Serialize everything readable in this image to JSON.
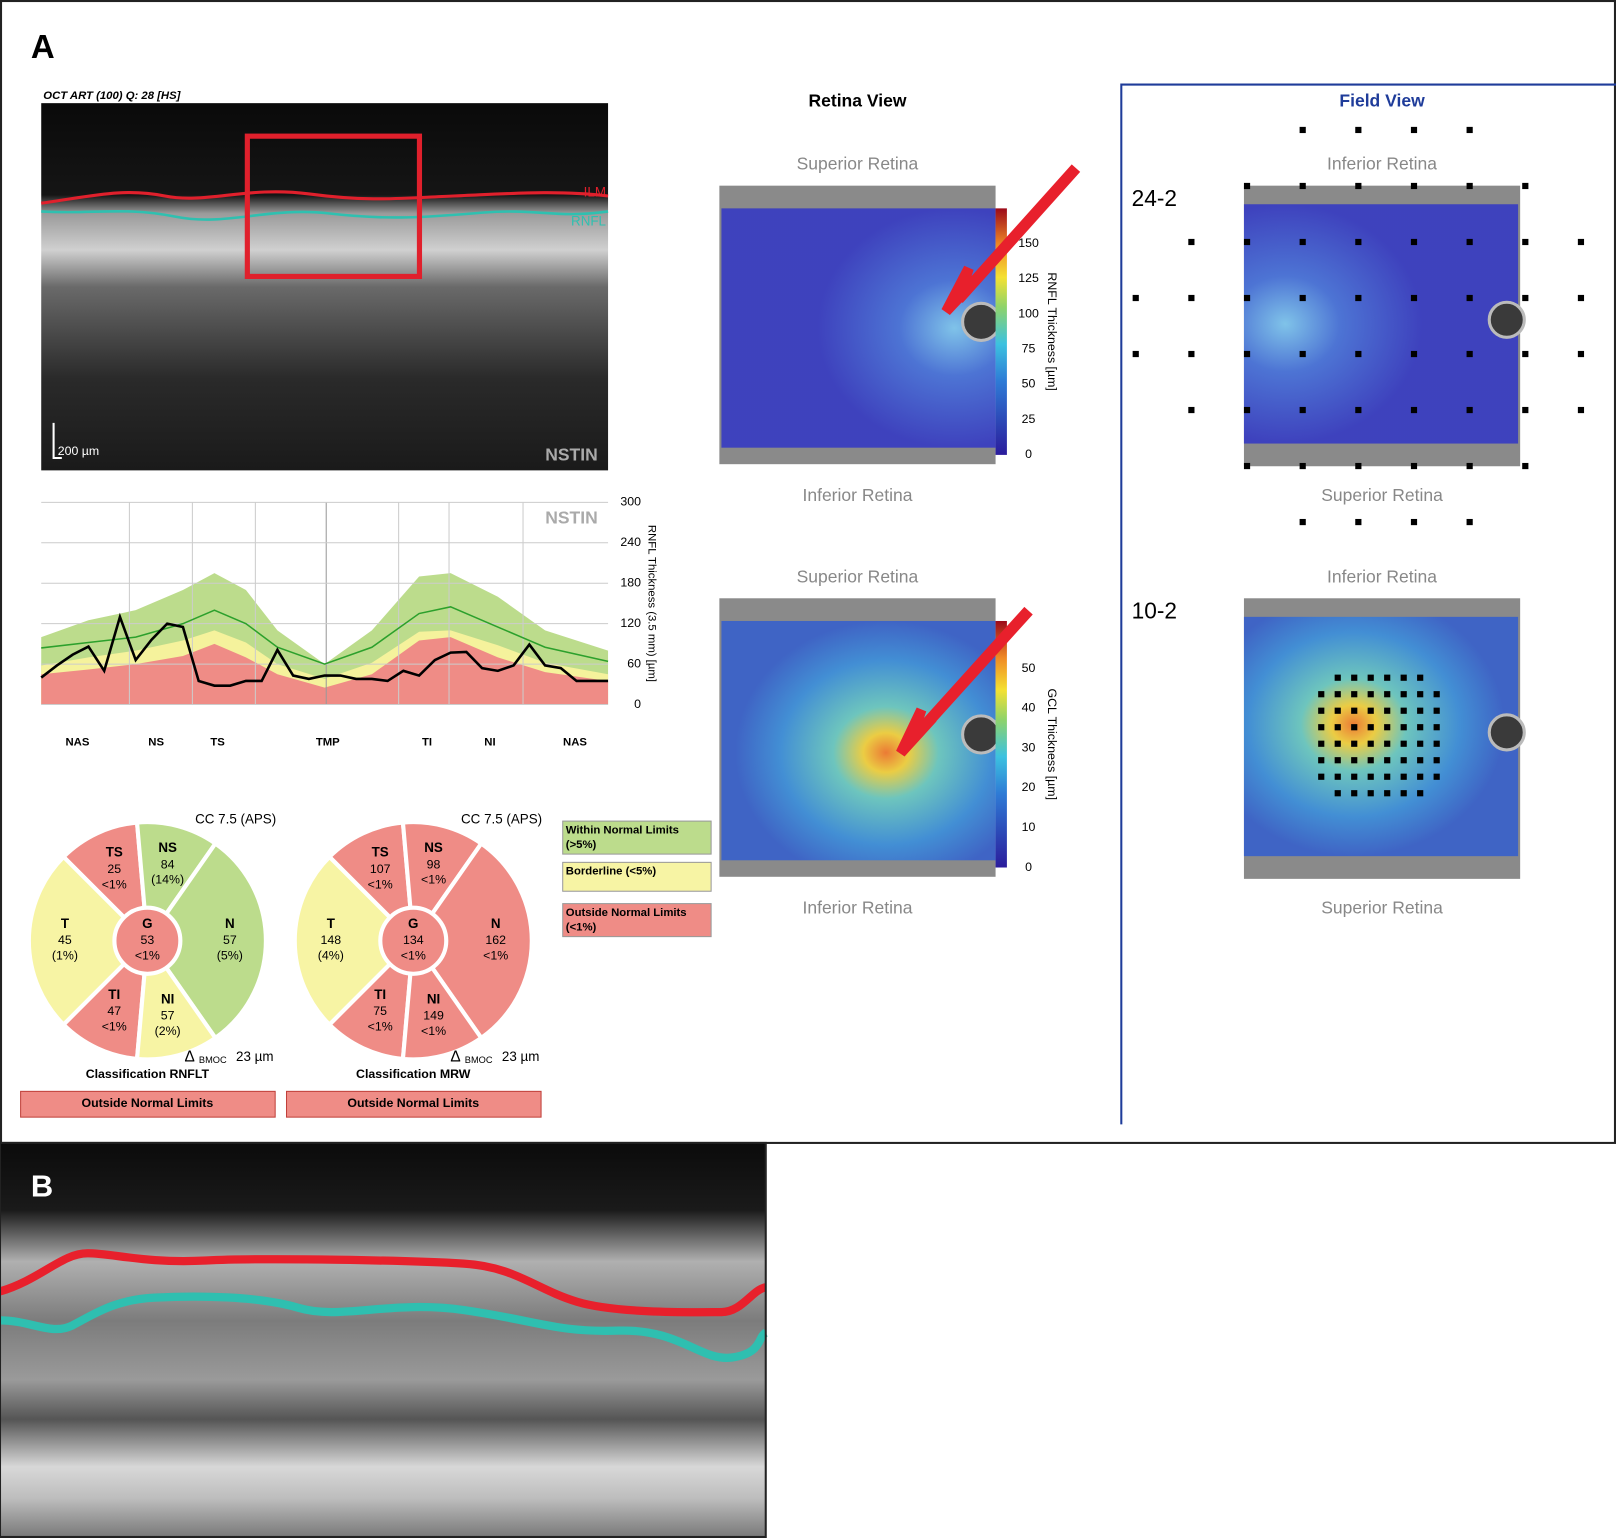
{
  "panel_a": {
    "label": "A"
  },
  "panel_b": {
    "label": "B"
  },
  "oct_scan": {
    "header": "OCT ART (100) Q: 28 [HS]",
    "ilm": "ILM",
    "rnfl": "RNFL",
    "scale": "200 µm",
    "sector": "NSTIN"
  },
  "chart_data": {
    "type": "line",
    "title": "NSTIN",
    "ylabel": "RNFL Thickness (3.5 mm) [µm]",
    "xlim": [
      0,
      360
    ],
    "ylim": [
      0,
      300
    ],
    "yticks": [
      0,
      60,
      120,
      180,
      240,
      300
    ],
    "xticks": [
      {
        "value": 23,
        "label": "NAS"
      },
      {
        "value": 73,
        "label": "NS"
      },
      {
        "value": 112,
        "label": "TS"
      },
      {
        "value": 182,
        "label": "TMP"
      },
      {
        "value": 245,
        "label": "TI"
      },
      {
        "value": 285,
        "label": "NI"
      },
      {
        "value": 339,
        "label": "NAS"
      }
    ],
    "xgrid": [
      56,
      96,
      136,
      181,
      227,
      259,
      306
    ],
    "grid": true,
    "bands": [
      {
        "color": "#bcdc8c",
        "x": [
          0,
          30,
          60,
          90,
          110,
          130,
          150,
          180,
          210,
          240,
          260,
          290,
          320,
          360
        ],
        "values": [
          100,
          125,
          140,
          170,
          195,
          170,
          110,
          60,
          110,
          190,
          195,
          160,
          110,
          80
        ]
      },
      {
        "color": "#f5f29c",
        "x": [
          0,
          30,
          60,
          90,
          110,
          130,
          150,
          180,
          210,
          240,
          260,
          290,
          320,
          360
        ],
        "values": [
          58,
          70,
          80,
          95,
          110,
          92,
          60,
          38,
          62,
          108,
          110,
          88,
          62,
          45
        ]
      },
      {
        "color": "#ef8c86",
        "x": [
          0,
          30,
          60,
          90,
          110,
          130,
          150,
          180,
          210,
          240,
          260,
          290,
          320,
          360
        ],
        "values": [
          45,
          52,
          60,
          72,
          90,
          70,
          45,
          25,
          45,
          95,
          100,
          70,
          48,
          35
        ]
      }
    ],
    "series": [
      {
        "color": "#2ca02c",
        "x": [
          0,
          30,
          60,
          90,
          110,
          130,
          150,
          180,
          210,
          240,
          260,
          290,
          320,
          360
        ],
        "values": [
          84,
          92,
          100,
          120,
          140,
          120,
          85,
          60,
          85,
          135,
          145,
          115,
          85,
          64
        ]
      },
      {
        "color": "#000000",
        "x": [
          0,
          10,
          20,
          30,
          40,
          50,
          60,
          70,
          80,
          90,
          100,
          110,
          120,
          130,
          140,
          150,
          160,
          170,
          180,
          190,
          200,
          210,
          220,
          230,
          240,
          250,
          260,
          270,
          280,
          290,
          300,
          310,
          320,
          330,
          340,
          350,
          360
        ],
        "values": [
          40,
          58,
          74,
          86,
          50,
          130,
          66,
          96,
          120,
          115,
          35,
          28,
          28,
          35,
          35,
          81,
          43,
          38,
          43,
          43,
          38,
          38,
          35,
          50,
          43,
          66,
          77,
          78,
          54,
          50,
          58,
          89,
          58,
          54,
          35,
          35,
          35
        ]
      }
    ]
  },
  "sector_charts": [
    {
      "cc": "CC 7.5 (APS)",
      "sectors": [
        {
          "name": "TS",
          "value": 25,
          "pct": "<1%",
          "status": "outside"
        },
        {
          "name": "NS",
          "value": 84,
          "pct": "(14%)",
          "status": "within"
        },
        {
          "name": "T",
          "value": 45,
          "pct": "(1%)",
          "status": "borderline"
        },
        {
          "name": "N",
          "value": 57,
          "pct": "(5%)",
          "status": "within"
        },
        {
          "name": "TI",
          "value": 47,
          "pct": "<1%",
          "status": "outside"
        },
        {
          "name": "NI",
          "value": 57,
          "pct": "(2%)",
          "status": "borderline"
        }
      ],
      "global": {
        "name": "G",
        "value": 53,
        "pct": "<1%",
        "status": "outside"
      },
      "bmoc": {
        "symbol": "Δ",
        "sub": "BMOC",
        "value": "23 µm"
      },
      "classification": "Classification RNFLT",
      "result": "Outside Normal Limits"
    },
    {
      "cc": "CC 7.5 (APS)",
      "sectors": [
        {
          "name": "TS",
          "value": 107,
          "pct": "<1%",
          "status": "outside"
        },
        {
          "name": "NS",
          "value": 98,
          "pct": "<1%",
          "status": "outside"
        },
        {
          "name": "T",
          "value": 148,
          "pct": "(4%)",
          "status": "borderline"
        },
        {
          "name": "N",
          "value": 162,
          "pct": "<1%",
          "status": "outside"
        },
        {
          "name": "TI",
          "value": 75,
          "pct": "<1%",
          "status": "outside"
        },
        {
          "name": "NI",
          "value": 149,
          "pct": "<1%",
          "status": "outside"
        }
      ],
      "global": {
        "name": "G",
        "value": 134,
        "pct": "<1%",
        "status": "outside"
      },
      "bmoc": {
        "symbol": "Δ",
        "sub": "BMOC",
        "value": "23 µm"
      },
      "classification": "Classification MRW",
      "result": "Outside Normal Limits"
    }
  ],
  "legend": [
    {
      "status": "within",
      "lines": [
        "Within Normal Limits",
        "(>5%)"
      ]
    },
    {
      "status": "borderline",
      "lines": [
        "Borderline (<5%)"
      ]
    },
    {
      "status": "outside",
      "lines": [
        "Outside Normal Limits",
        "(<1%)"
      ]
    }
  ],
  "status_colors": {
    "within": "#bcdc8c",
    "borderline": "#f7f4a4",
    "outside": "#ef8c86"
  },
  "retina_view": {
    "title": "Retina View",
    "maps": [
      {
        "top": "Superior Retina",
        "bottom": "Inferior Retina",
        "colorbar": {
          "label": "RNFL Thickness [µm]",
          "lim": [
            0,
            175
          ],
          "ticks": [
            0,
            25,
            50,
            75,
            100,
            125,
            150
          ]
        }
      },
      {
        "top": "Superior Retina",
        "bottom": "Inferior Retina",
        "colorbar": {
          "label": "GCL Thickness [µm]",
          "lim": [
            0,
            62
          ],
          "ticks": [
            0,
            10,
            20,
            30,
            40,
            50
          ]
        }
      }
    ]
  },
  "field_view": {
    "title": "Field View",
    "maps": [
      {
        "pattern": "24-2",
        "top": "Inferior Retina",
        "bottom": "Superior Retina"
      },
      {
        "pattern": "10-2",
        "top": "Inferior Retina",
        "bottom": "Superior Retina"
      }
    ]
  }
}
